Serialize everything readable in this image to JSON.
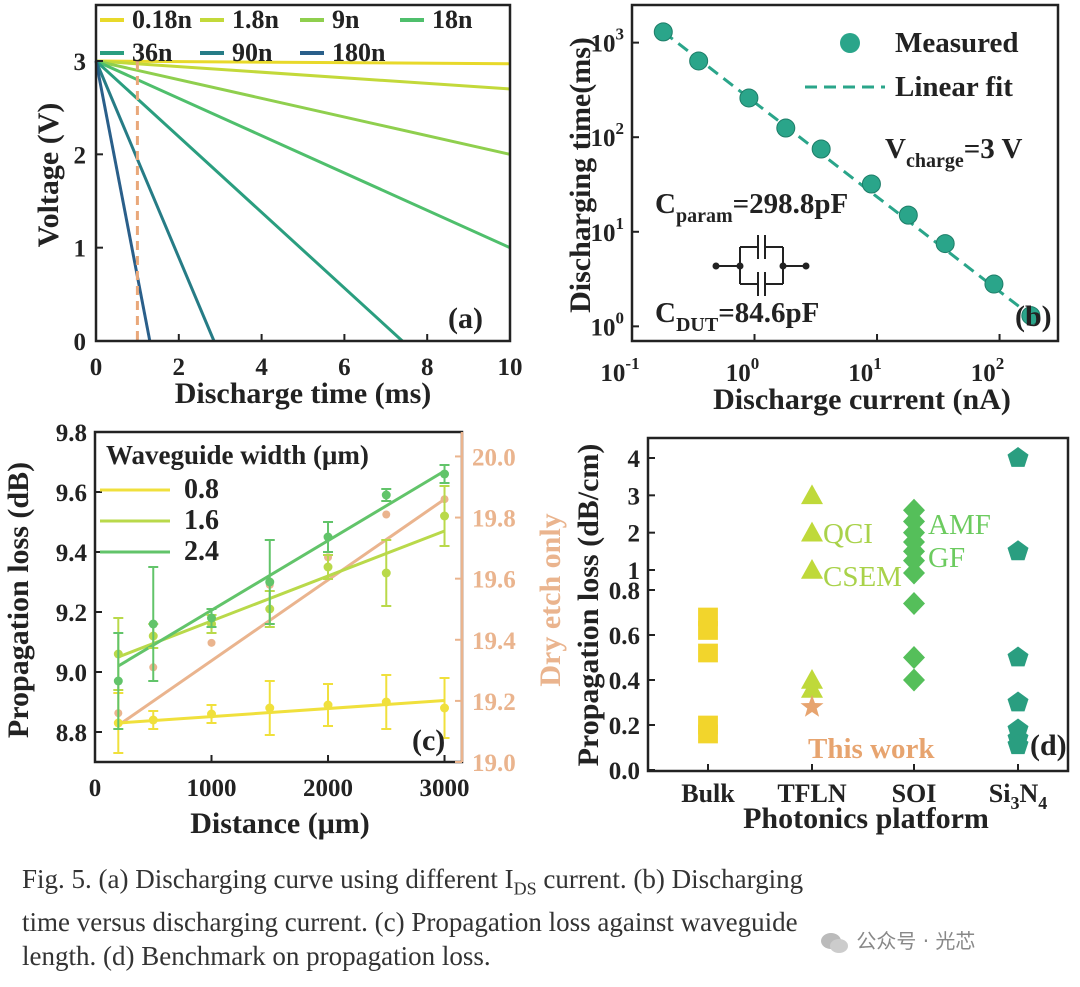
{
  "figure": {
    "caption_lines": [
      "Fig. 5. (a) Discharging curve using different I_DS current. (b) Discharging",
      "time versus discharging current. (c) Propagation loss against waveguide",
      "length. (d) Benchmark on propagation loss."
    ],
    "caption": {
      "l1a": "Fig. 5. (a) Discharging curve using different I",
      "l1sub": "DS",
      "l1b": " current. (b) Discharging",
      "l2": "time versus discharging current. (c) Propagation loss against waveguide",
      "l3": "length. (d) Benchmark on propagation loss."
    },
    "watermark": "公众号 · 光芯"
  },
  "chart_data": [
    {
      "id": "a",
      "type": "line",
      "panel_label": "(a)",
      "xlabel": "Discharge time (ms)",
      "ylabel": "Voltage (V)",
      "xlim": [
        0,
        10
      ],
      "ylim": [
        0,
        3.6
      ],
      "xticks": [
        0,
        2,
        4,
        6,
        8,
        10
      ],
      "yticks": [
        0,
        1,
        2,
        3
      ],
      "initial_voltage": 3,
      "marker_line_x": 1,
      "series": [
        {
          "name": "0.18n",
          "color": "#e8d92a",
          "end": [
            10,
            2.97
          ]
        },
        {
          "name": "1.8n",
          "color": "#c3d93a",
          "end": [
            10,
            2.7
          ]
        },
        {
          "name": "9n",
          "color": "#8fcf4e",
          "end": [
            10,
            2.0
          ]
        },
        {
          "name": "18n",
          "color": "#4fbf6c",
          "end": [
            10,
            1.0
          ]
        },
        {
          "name": "36n",
          "color": "#2a9e7f",
          "end": [
            7.4,
            0
          ]
        },
        {
          "name": "90n",
          "color": "#267c86",
          "end": [
            2.85,
            0
          ]
        },
        {
          "name": "180n",
          "color": "#2a5f8a",
          "end": [
            1.3,
            0
          ]
        }
      ]
    },
    {
      "id": "b",
      "type": "scatter",
      "panel_label": "(b)",
      "xlabel": "Discharge current (nA)",
      "ylabel": "Discharging time(ms)",
      "xscale": "log",
      "yscale": "log",
      "xlim": [
        0.1,
        300
      ],
      "ylim": [
        0.7,
        2500
      ],
      "xticks": [
        {
          "base": "10",
          "exp": "-1",
          "v": 0.1
        },
        {
          "base": "10",
          "exp": "0",
          "v": 1
        },
        {
          "base": "10",
          "exp": "1",
          "v": 10
        },
        {
          "base": "10",
          "exp": "2",
          "v": 100
        }
      ],
      "yticks": [
        {
          "base": "10",
          "exp": "0",
          "v": 1
        },
        {
          "base": "10",
          "exp": "1",
          "v": 10
        },
        {
          "base": "10",
          "exp": "2",
          "v": 100
        },
        {
          "base": "10",
          "exp": "3",
          "v": 1000
        }
      ],
      "measured": {
        "x": [
          0.18,
          0.35,
          0.9,
          1.8,
          3.5,
          9,
          18,
          36,
          90,
          180
        ],
        "y": [
          1300,
          640,
          260,
          125,
          75,
          32,
          15,
          7.5,
          2.8,
          1.3
        ]
      },
      "fit": {
        "x": [
          0.18,
          180
        ],
        "y": [
          1300,
          1.3
        ]
      },
      "legend": [
        "Measured",
        "Linear fit"
      ],
      "color": "#2aa58a",
      "annotations": {
        "vcharge_main": "V",
        "vcharge_sub": "charge",
        "vcharge_tail": "=3 V",
        "cparam_main": "C",
        "cparam_sub": "param",
        "cparam_tail": "=298.8pF",
        "cdut_main": "C",
        "cdut_sub": "DUT",
        "cdut_tail": "=84.6pF"
      }
    },
    {
      "id": "c",
      "type": "scatter",
      "panel_label": "(c)",
      "xlabel": "Distance (μm)",
      "ylabel": "Propagation loss (dB)",
      "ylabel_right": "Dry etch only",
      "legend_title": "Waveguide width (μm)",
      "xlim": [
        0,
        3150
      ],
      "ylim": [
        8.7,
        9.8
      ],
      "ylim_right": [
        19.0,
        20.08
      ],
      "xticks": [
        0,
        1000,
        2000,
        3000
      ],
      "yticks": [
        8.8,
        9.0,
        9.2,
        9.4,
        9.6,
        9.8
      ],
      "yticks_right": [
        19.0,
        19.2,
        19.4,
        19.6,
        19.8,
        20.0
      ],
      "x": [
        200,
        500,
        1000,
        1500,
        2000,
        2500,
        3000
      ],
      "series": [
        {
          "name": "0.8",
          "color": "#f0e03c",
          "values": [
            8.83,
            8.84,
            8.86,
            8.88,
            8.89,
            8.9,
            8.88
          ],
          "err": [
            0.1,
            0.03,
            0.03,
            0.09,
            0.07,
            0.09,
            0.1
          ],
          "fit": [
            8.83,
            8.905
          ]
        },
        {
          "name": "1.6",
          "color": "#b9d94a",
          "values": [
            9.06,
            9.12,
            9.16,
            9.21,
            9.35,
            9.33,
            9.52
          ],
          "err": [
            0.12,
            0.04,
            0.03,
            0.06,
            0.04,
            0.11,
            0.1
          ],
          "fit": [
            9.05,
            9.47
          ]
        },
        {
          "name": "2.4",
          "color": "#62c46a",
          "values": [
            8.97,
            9.16,
            9.18,
            9.3,
            9.45,
            9.59,
            9.66
          ],
          "err": [
            0.16,
            0.19,
            0.03,
            0.14,
            0.05,
            0.02,
            0.03
          ],
          "fit": [
            9.02,
            9.67
          ]
        }
      ],
      "dry_etch": {
        "color": "#eab48e",
        "values": [
          19.16,
          19.31,
          19.39,
          19.58,
          19.67,
          19.81,
          19.86
        ],
        "fit": [
          19.12,
          19.86
        ]
      }
    },
    {
      "id": "d",
      "type": "scatter",
      "panel_label": "(d)",
      "xlabel": "Photonics platform",
      "ylabel": "Propagation loss (dB/cm)",
      "categories": [
        "Bulk",
        "TFLN",
        "SOI",
        "Si3N4"
      ],
      "category_labels": [
        {
          "main": "Bulk",
          "sub": "",
          "tail": ""
        },
        {
          "main": "TFLN",
          "sub": "",
          "tail": ""
        },
        {
          "main": "SOI",
          "sub": "",
          "tail": ""
        },
        {
          "main": "Si",
          "sub": "3",
          "tail": "N4"
        }
      ],
      "yscale": "piecewise",
      "yticks": [
        "0.0",
        "0.2",
        "0.4",
        "0.6",
        "0.8",
        "1",
        "2",
        "3",
        "4"
      ],
      "points": {
        "Bulk": {
          "marker": "square",
          "color": "#f2d52c",
          "values": [
            0.68,
            0.62,
            0.52,
            0.2,
            0.16
          ]
        },
        "TFLN": {
          "marker": "triangle",
          "color": "#bfd93a",
          "values": [
            3.0,
            2.0,
            1.0,
            0.4,
            0.36
          ]
        },
        "SOI": {
          "marker": "diamond",
          "color": "#55bf5a",
          "values": [
            2.6,
            2.3,
            2.0,
            1.75,
            1.5,
            1.25,
            0.92,
            0.74,
            0.5,
            0.4
          ]
        },
        "Si3N4": {
          "marker": "pentagon",
          "color": "#2a9e80",
          "values": [
            4.0,
            1.5,
            0.5,
            0.3,
            0.18,
            0.14,
            0.11
          ]
        }
      },
      "this_work": {
        "category": "TFLN",
        "value": 0.28,
        "color": "#e7a46f",
        "label": "This work"
      },
      "labels": [
        "QCI",
        "CSEM",
        "AMF",
        "GF"
      ]
    }
  ]
}
